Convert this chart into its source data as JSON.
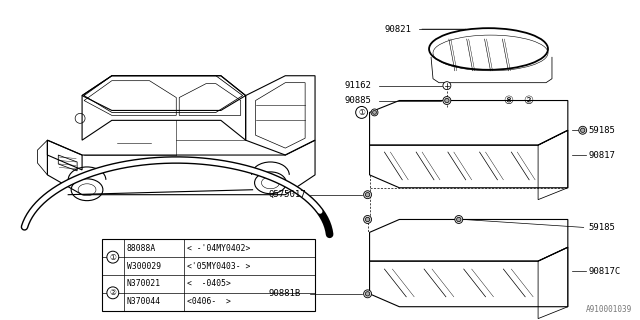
{
  "background_color": "#ffffff",
  "diagram_id": "A910001039",
  "table_data": [
    [
      "1",
      "88088A",
      "< -'04MY0402>"
    ],
    [
      "1",
      "W300029",
      "<'05MY0403- >"
    ],
    [
      "2",
      "N370021",
      "<  -0405>"
    ],
    [
      "2",
      "N370044",
      "<0406-  >"
    ]
  ],
  "font_size": 6.5
}
